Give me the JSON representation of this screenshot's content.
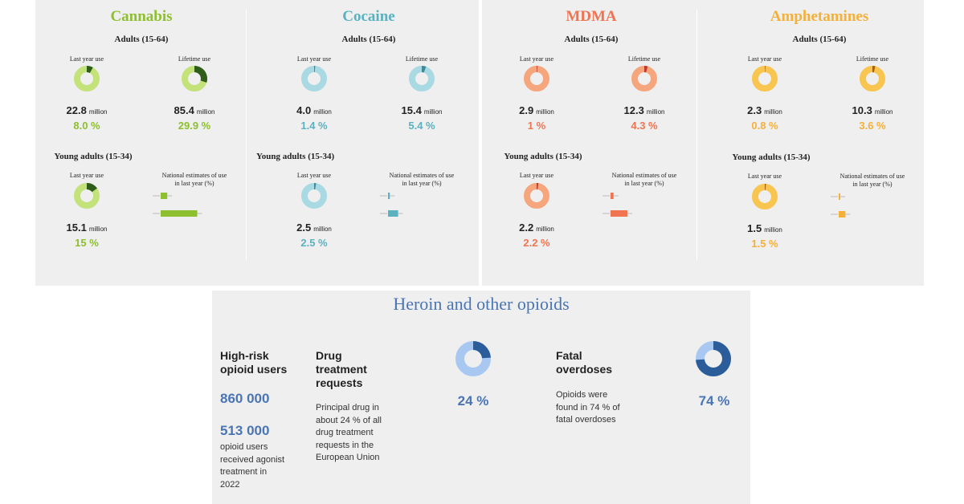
{
  "colors": {
    "cannabis": "#8dbf2e",
    "cannabis_dark": "#2f5d1a",
    "cannabis_light": "#c4e27a",
    "cocaine": "#5ab1c0",
    "cocaine_dark": "#3e8a98",
    "cocaine_light": "#a9d9e3",
    "mdma": "#f07451",
    "mdma_dark": "#c0392b",
    "mdma_light": "#f5a67d",
    "amphet": "#f5b03a",
    "amphet_dark": "#a5620e",
    "amphet_light": "#f8c550",
    "opioid_blue": "#4a75b5",
    "opioid_dark": "#2b5d9a",
    "opioid_light": "#a8c8f2"
  },
  "drugs": [
    {
      "name": "Cannabis",
      "key": "cannabis",
      "adults_label": "Adults (15-64)",
      "last_year_label": "Last year use",
      "lifetime_label": "Lifetime use",
      "last_year_value": "22.8",
      "last_year_unit": "million",
      "last_year_pct": "8.0 %",
      "lifetime_value": "85.4",
      "lifetime_unit": "million",
      "lifetime_pct": "29.9 %",
      "young_label": "Young adults (15-34)",
      "young_last_year_label": "Last year use",
      "national_label_1": "National estimates of use",
      "national_label_2": "in last year (%)",
      "young_value": "15.1",
      "young_unit": "million",
      "young_pct": "15 %"
    },
    {
      "name": "Cocaine",
      "key": "cocaine",
      "adults_label": "Adults (15-64)",
      "last_year_label": "Last year use",
      "lifetime_label": "Lifetime use",
      "last_year_value": "4.0",
      "last_year_unit": "million",
      "last_year_pct": "1.4 %",
      "lifetime_value": "15.4",
      "lifetime_unit": "million",
      "lifetime_pct": "5.4 %",
      "young_label": "Young adults (15-34)",
      "young_last_year_label": "Last year use",
      "national_label_1": "National estimates of use",
      "national_label_2": "in last year (%)",
      "young_value": "2.5",
      "young_unit": "million",
      "young_pct": "2.5 %"
    },
    {
      "name": "MDMA",
      "key": "mdma",
      "adults_label": "Adults (15-64)",
      "last_year_label": "Last year use",
      "lifetime_label": "Lifetime use",
      "last_year_value": "2.9",
      "last_year_unit": "million",
      "last_year_pct": "1 %",
      "lifetime_value": "12.3",
      "lifetime_unit": "million",
      "lifetime_pct": "4.3 %",
      "young_label": "Young adults (15-34)",
      "young_last_year_label": "Last year use",
      "national_label_1": "National estimates of use",
      "national_label_2": "in last year (%)",
      "young_value": "2.2",
      "young_unit": "million",
      "young_pct": "2.2 %"
    },
    {
      "name": "Amphetamines",
      "key": "amphet",
      "adults_label": "Adults (15-64)",
      "last_year_label": "Last year use",
      "lifetime_label": "Lifetime use",
      "last_year_value": "2.3",
      "last_year_unit": "million",
      "last_year_pct": "0.8 %",
      "lifetime_value": "10.3",
      "lifetime_unit": "million",
      "lifetime_pct": "3.6 %",
      "young_label": "Young adults (15-34)",
      "young_last_year_label": "Last year use",
      "national_label_1": "National estimates of use",
      "national_label_2": "in last year (%)",
      "young_value": "1.5",
      "young_unit": "million",
      "young_pct": "1.5 %"
    }
  ],
  "chart_data": [
    {
      "type": "pie",
      "title": "Cannabis",
      "series": [
        {
          "name": "Last year use",
          "values": [
            8.0
          ]
        },
        {
          "name": "Lifetime use",
          "values": [
            29.9
          ]
        },
        {
          "name": "Young adults last year use",
          "values": [
            15
          ]
        }
      ],
      "national_range": {
        "low_fraction": 0.0,
        "high_fraction": 0.65
      }
    },
    {
      "type": "pie",
      "title": "Cocaine",
      "series": [
        {
          "name": "Last year use",
          "values": [
            1.4
          ]
        },
        {
          "name": "Lifetime use",
          "values": [
            5.4
          ]
        },
        {
          "name": "Young adults last year use",
          "values": [
            2.5
          ]
        }
      ],
      "national_range": {
        "low_fraction": 0.0,
        "high_fraction": 0.18
      }
    },
    {
      "type": "pie",
      "title": "MDMA",
      "series": [
        {
          "name": "Last year use",
          "values": [
            1
          ]
        },
        {
          "name": "Lifetime use",
          "values": [
            4.3
          ]
        },
        {
          "name": "Young adults last year use",
          "values": [
            2.2
          ]
        }
      ],
      "national_range": {
        "low_fraction": 0.0,
        "high_fraction": 0.3
      }
    },
    {
      "type": "pie",
      "title": "Amphetamines",
      "series": [
        {
          "name": "Last year use",
          "values": [
            0.8
          ]
        },
        {
          "name": "Lifetime use",
          "values": [
            3.6
          ]
        },
        {
          "name": "Young adults last year use",
          "values": [
            1.5
          ]
        }
      ],
      "national_range": {
        "low_fraction": 0.0,
        "high_fraction": 0.12
      }
    },
    {
      "type": "pie",
      "title": "Heroin and other opioids",
      "series": [
        {
          "name": "Drug treatment requests",
          "values": [
            24
          ]
        },
        {
          "name": "Fatal overdoses",
          "values": [
            74
          ]
        }
      ]
    }
  ],
  "opioids": {
    "title": "Heroin and other opioids",
    "high_risk_head_1": "High-risk",
    "high_risk_head_2": "opioid users",
    "high_risk_value": "860 000",
    "agonist_value": "513 000",
    "agonist_text_1": "opioid users",
    "agonist_text_2": "received agonist",
    "agonist_text_3": "treatment in",
    "agonist_text_4": "2022",
    "treatment_head_1": "Drug",
    "treatment_head_2": "treatment",
    "treatment_head_3": "requests",
    "treatment_text_1": "Principal drug in",
    "treatment_text_2": "about 24 % of all",
    "treatment_text_3": "drug treatment",
    "treatment_text_4": "requests in the",
    "treatment_text_5": "European Union",
    "treatment_pct": "24 %",
    "overdose_head_1": "Fatal",
    "overdose_head_2": "overdoses",
    "overdose_text_1": "Opioids were",
    "overdose_text_2": "found in 74 % of",
    "overdose_text_3": "fatal overdoses",
    "overdose_pct": "74 %"
  }
}
